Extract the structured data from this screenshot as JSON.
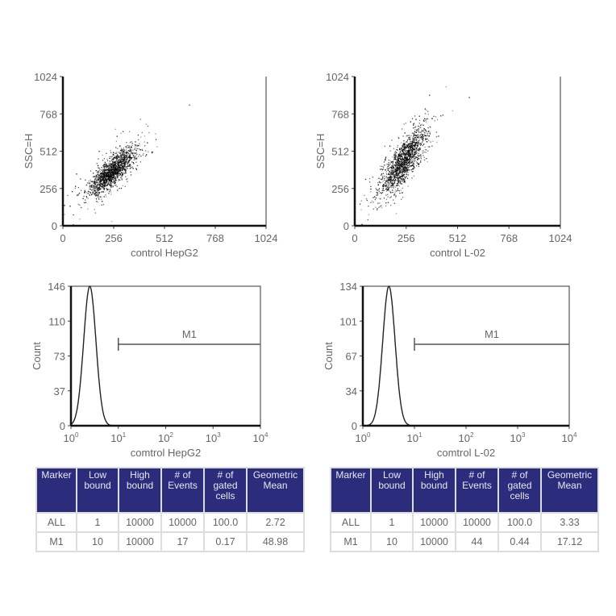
{
  "chart_data": [
    {
      "type": "scatter",
      "ylabel": "SSC=H",
      "xlabel": "control HepG2",
      "xlim": [
        0,
        1024
      ],
      "ylim": [
        0,
        1024
      ],
      "xticks": [
        "0",
        "256",
        "512",
        "768",
        "1024"
      ],
      "yticks": [
        "0",
        "256",
        "512",
        "768",
        "1024"
      ],
      "cloud": {
        "center": [
          250,
          380
        ],
        "spread": [
          55,
          85
        ],
        "n": 1500
      }
    },
    {
      "type": "scatter",
      "ylabel": "SSC=H",
      "xlabel": "control  L-02",
      "xlim": [
        0,
        1024
      ],
      "ylim": [
        0,
        1024
      ],
      "xticks": [
        "0",
        "256",
        "512",
        "768",
        "1024"
      ],
      "yticks": [
        "0",
        "256",
        "512",
        "768",
        "1024"
      ],
      "cloud": {
        "center": [
          240,
          440
        ],
        "spread": [
          55,
          120
        ],
        "n": 1500
      }
    },
    {
      "type": "area",
      "ylabel": "Count",
      "xlabel": "comtrol HepG2",
      "xscale": "log",
      "xlim": [
        1,
        10000
      ],
      "ylim": [
        0,
        146
      ],
      "xticks": [
        "10^0",
        "10^1",
        "10^2",
        "10^3",
        "10^4"
      ],
      "yticks": [
        "0",
        "37",
        "73",
        "110",
        "146"
      ],
      "peak": {
        "x": 2.5,
        "count": 146,
        "log_width": 0.13
      },
      "marker": {
        "label": "M1",
        "from": 10,
        "to": 10000
      }
    },
    {
      "type": "area",
      "ylabel": "Count",
      "xlabel": "comtrol L-02",
      "xscale": "log",
      "xlim": [
        1,
        10000
      ],
      "ylim": [
        0,
        134
      ],
      "xticks": [
        "10^0",
        "10^1",
        "10^2",
        "10^3",
        "10^4"
      ],
      "yticks": [
        "0",
        "34",
        "67",
        "101",
        "134"
      ],
      "peak": {
        "x": 3.2,
        "count": 134,
        "log_width": 0.12
      },
      "marker": {
        "label": "M1",
        "from": 10,
        "to": 10000
      }
    }
  ],
  "tables": [
    {
      "headers": [
        "Marker",
        "Low bound",
        "High bound",
        "# of Events",
        "# of gated cells",
        "Geometric Mean"
      ],
      "rows": [
        [
          "ALL",
          "1",
          "10000",
          "10000",
          "100.0",
          "2.72"
        ],
        [
          "M1",
          "10",
          "10000",
          "17",
          "0.17",
          "48.98"
        ]
      ]
    },
    {
      "headers": [
        "Marker",
        "Low bound",
        "High bound",
        "# of Events",
        "# of gated cells",
        "Geometric Mean"
      ],
      "rows": [
        [
          "ALL",
          "1",
          "10000",
          "10000",
          "100.0",
          "3.33"
        ],
        [
          "M1",
          "10",
          "10000",
          "44",
          "0.44",
          "17.12"
        ]
      ]
    }
  ],
  "colors": {
    "header_bg": "#2b2c7c",
    "dots": "#000000"
  }
}
